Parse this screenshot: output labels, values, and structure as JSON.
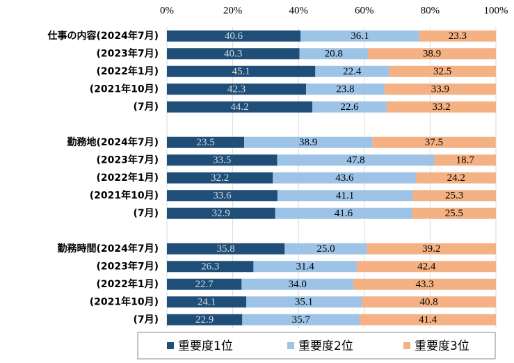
{
  "chart_data": {
    "type": "stacked-barh",
    "categories": [
      "仕事の内容(2024年7月)",
      "(2023年7月)",
      "(2022年1月)",
      "(2021年10月)",
      "(7月)",
      null,
      "勤務地(2024年7月)",
      "(2023年7月)",
      "(2022年1月)",
      "(2021年10月)",
      "(7月)",
      null,
      "勤務時間(2024年7月)",
      "(2023年7月)",
      "(2022年1月)",
      "(2021年10月)",
      "(7月)"
    ],
    "series": [
      {
        "name": "重要度1位",
        "color": "#1f4e79",
        "values": [
          40.6,
          40.3,
          45.1,
          42.3,
          44.2,
          null,
          23.5,
          33.5,
          32.2,
          33.6,
          32.9,
          null,
          35.8,
          26.3,
          22.7,
          24.1,
          22.9
        ]
      },
      {
        "name": "重要度2位",
        "color": "#9dc3e6",
        "values": [
          36.1,
          20.8,
          22.4,
          23.8,
          22.6,
          null,
          38.9,
          47.8,
          43.6,
          41.1,
          41.6,
          null,
          25.0,
          31.4,
          34.0,
          35.1,
          35.7
        ],
        "value_labels": [
          "36.1",
          "20.8",
          "22.4",
          "23.8",
          "22.6",
          null,
          "38.9",
          "47.8",
          "43.6",
          "41.1",
          "41.6",
          null,
          "25.0",
          "31.4",
          "34.0",
          "35.1",
          "35.7"
        ]
      },
      {
        "name": "重要度3位",
        "color": "#f4b183",
        "values": [
          23.3,
          38.9,
          32.5,
          33.9,
          33.2,
          null,
          37.5,
          18.7,
          24.2,
          25.3,
          25.5,
          null,
          39.2,
          42.4,
          43.3,
          40.8,
          41.4
        ]
      }
    ],
    "xlim": [
      0,
      100
    ],
    "xticks": [
      {
        "value": 0,
        "label": "0%"
      },
      {
        "value": 20,
        "label": "20%"
      },
      {
        "value": 40,
        "label": "40%"
      },
      {
        "value": 60,
        "label": "60%"
      },
      {
        "value": 80,
        "label": "80%"
      },
      {
        "value": 100,
        "label": "100%"
      }
    ],
    "grid": true,
    "legend": "bottom"
  }
}
